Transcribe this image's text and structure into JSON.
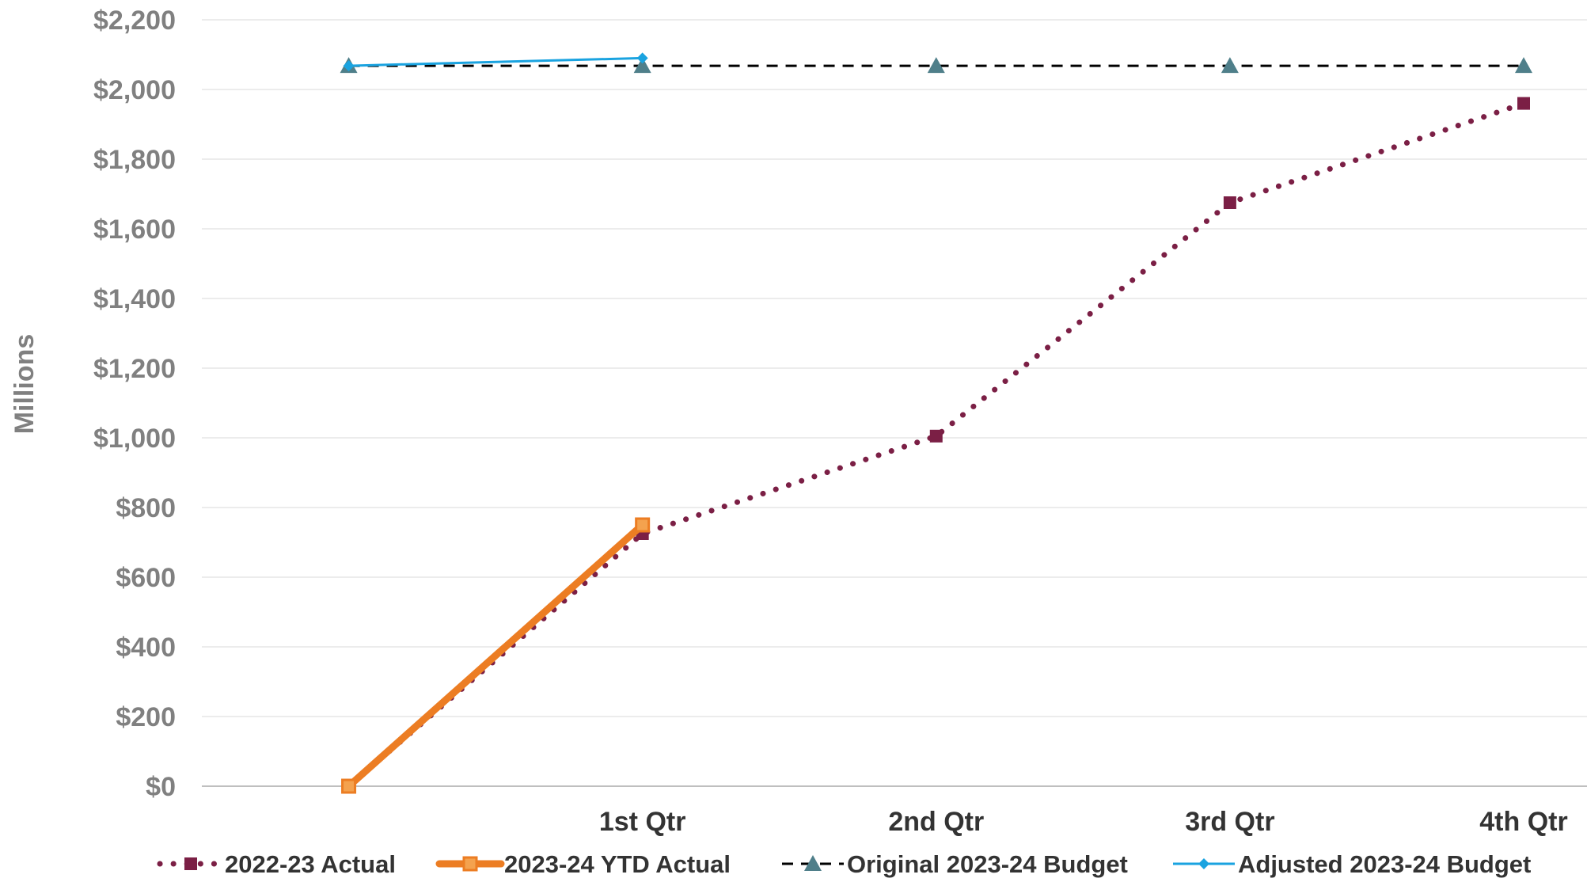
{
  "chart_data": {
    "type": "line",
    "title": "",
    "xlabel": "",
    "ylabel": "Millions",
    "ylim": [
      0,
      2200
    ],
    "y_ticks": [
      0,
      200,
      400,
      600,
      800,
      1000,
      1200,
      1400,
      1600,
      1800,
      2000,
      2200
    ],
    "y_tick_labels": [
      "$0",
      "$200",
      "$400",
      "$600",
      "$800",
      "$1,000",
      "$1,200",
      "$1,400",
      "$1,600",
      "$1,800",
      "$2,000",
      "$2,200"
    ],
    "categories": [
      "",
      "1st Qtr",
      "2nd Qtr",
      "3rd Qtr",
      "4th Qtr"
    ],
    "grid": true,
    "legend_position": "bottom",
    "series": [
      {
        "name": "2022-23 Actual",
        "values": [
          0,
          725,
          1005,
          1675,
          1960
        ],
        "color": "#7b1f45",
        "line": "dotted",
        "marker": "square"
      },
      {
        "name": "2023-24 YTD Actual",
        "values": [
          0,
          750,
          null,
          null,
          null
        ],
        "color": "#ec7d23",
        "line": "solid-thick",
        "marker": "square-hollow"
      },
      {
        "name": "Original 2023-24 Budget",
        "values": [
          2068,
          2068,
          2068,
          2068,
          2068
        ],
        "color": "#4f7f8a",
        "line": "dashed-black",
        "marker": "triangle"
      },
      {
        "name": "Adjusted 2023-24 Budget",
        "values": [
          2068,
          2090,
          null,
          null,
          null
        ],
        "color": "#1aa3e0",
        "line": "solid-thin",
        "marker": "diamond"
      }
    ]
  }
}
